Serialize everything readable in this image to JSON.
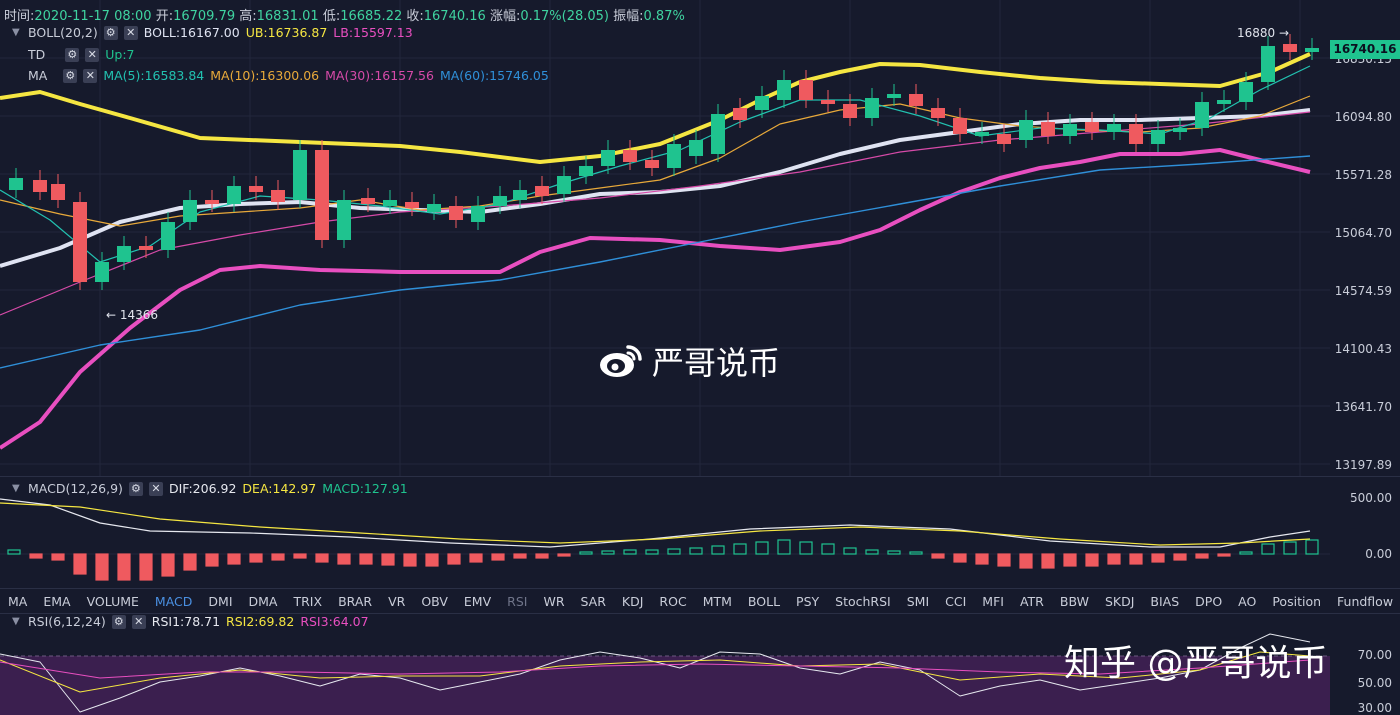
{
  "header": {
    "time_label": "时间:",
    "time": "2020-11-17 08:00",
    "open_label": "开:",
    "open": "16709.79",
    "high_label": "高:",
    "high": "16831.01",
    "low_label": "低:",
    "low": "16685.22",
    "close_label": "收:",
    "close": "16740.16",
    "change_label": "涨幅:",
    "change": "0.17%(28.05)",
    "amp_label": "振幅:",
    "amp": "0.87%"
  },
  "legend_main": {
    "boll_name": "BOLL(20,2)",
    "boll": "BOLL:16167.00",
    "ub": "UB:16736.87",
    "lb": "LB:15597.13",
    "td_name": "TD",
    "td_val": "Up:7",
    "ma_name": "MA",
    "ma5": "MA(5):16583.84",
    "ma10": "MA(10):16300.06",
    "ma30": "MA(30):16157.56",
    "ma60": "MA(60):15746.05"
  },
  "price_axis": [
    "16830.15",
    "16094.80",
    "15571.28",
    "15064.70",
    "14574.59",
    "14100.43",
    "13641.70",
    "13197.89"
  ],
  "current_price": "16740.16",
  "annotations": {
    "high_mark": "16880",
    "low_mark": "14366"
  },
  "macd": {
    "name": "MACD(12,26,9)",
    "dif": "DIF:206.92",
    "dea": "DEA:142.97",
    "macd": "MACD:127.91",
    "axis": [
      "500.00",
      "0.00"
    ]
  },
  "tabs": [
    "MA",
    "EMA",
    "VOLUME",
    "MACD",
    "DMI",
    "DMA",
    "TRIX",
    "BRAR",
    "VR",
    "OBV",
    "EMV",
    "RSI",
    "WR",
    "SAR",
    "KDJ",
    "ROC",
    "MTM",
    "BOLL",
    "PSY",
    "StochRSI",
    "SMI",
    "CCI",
    "MFI",
    "ATR",
    "BBW",
    "SKDJ",
    "BIAS",
    "DPO",
    "AO",
    "Position",
    "Fundflow"
  ],
  "active_tab": "MACD",
  "rsi": {
    "name": "RSI(6,12,24)",
    "rsi1": "RSI1:78.71",
    "rsi2": "RSI2:69.82",
    "rsi3": "RSI3:64.07",
    "axis": [
      "70.00",
      "50.00",
      "30.00"
    ]
  },
  "watermarks": {
    "center": "严哥说币",
    "corner": "知乎 @严哥说币"
  },
  "colors": {
    "up": "#1fc38f",
    "down": "#ef5a5f",
    "ub": "#f5e642",
    "boll": "#dfe3f2",
    "lb": "#e84fc0",
    "ma5": "#22c1b0",
    "ma10": "#e8a93a",
    "ma30": "#d64aa8",
    "ma60": "#2f8fd8"
  },
  "icons": {
    "settings": "gear-icon",
    "close": "close-icon",
    "collapse": "chevron-down-icon",
    "weibo": "weibo-icon"
  }
}
